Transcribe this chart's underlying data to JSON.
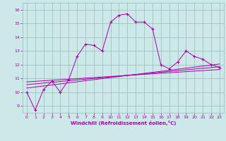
{
  "xlabel": "Windchill (Refroidissement éolien,°C)",
  "bg_color": "#cce8e8",
  "line_color": "#aa00aa",
  "grid_color": "#99bbbb",
  "xlim": [
    -0.5,
    23.5
  ],
  "ylim": [
    8.5,
    16.5
  ],
  "xticks": [
    0,
    1,
    2,
    3,
    4,
    5,
    6,
    7,
    8,
    9,
    10,
    11,
    12,
    13,
    14,
    15,
    16,
    17,
    18,
    19,
    20,
    21,
    22,
    23
  ],
  "yticks": [
    9,
    10,
    11,
    12,
    13,
    14,
    15,
    16
  ],
  "main_x": [
    0,
    1,
    2,
    3,
    4,
    5,
    6,
    7,
    8,
    9,
    10,
    11,
    12,
    13,
    14,
    15,
    16,
    17,
    18,
    19,
    20,
    21,
    22,
    23
  ],
  "main_y": [
    10.0,
    8.7,
    10.2,
    10.8,
    10.0,
    10.9,
    12.6,
    13.5,
    13.4,
    13.0,
    15.1,
    15.6,
    15.7,
    15.1,
    15.1,
    14.6,
    12.0,
    11.7,
    12.2,
    13.0,
    12.6,
    12.4,
    12.0,
    11.8
  ],
  "line1_x": [
    0,
    23
  ],
  "line1_y": [
    10.3,
    12.05
  ],
  "line2_x": [
    0,
    23
  ],
  "line2_y": [
    10.55,
    11.85
  ],
  "line3_x": [
    0,
    23
  ],
  "line3_y": [
    10.75,
    11.65
  ]
}
